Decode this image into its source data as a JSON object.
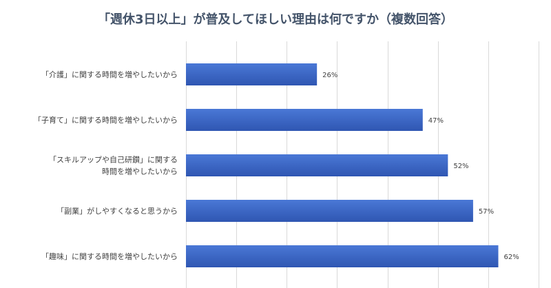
{
  "chart_data": {
    "type": "bar",
    "orientation": "horizontal",
    "title": "「週休3日以上」が普及してほしい理由は何ですか（複数回答）",
    "categories": [
      [
        "「介護」に関する時間を増やしたいから"
      ],
      [
        "「子育て」に関する時間を増やしたいから"
      ],
      [
        "「スキルアップや自己研鑚」に関する",
        "時間を増やしたいから"
      ],
      [
        "「副業」がしやすくなると思うから"
      ],
      [
        "「趣味」に関する時間を増やしたいから"
      ]
    ],
    "values": [
      26,
      47,
      52,
      57,
      62
    ],
    "value_labels": [
      "26%",
      "47%",
      "52%",
      "57%",
      "62%"
    ],
    "unit": "%",
    "xlim": [
      0,
      70
    ],
    "grid_step": 10,
    "grid": "vertical",
    "colors": {
      "bar_top": "#4a78d6",
      "bar_bottom": "#2f56b2",
      "grid": "#d9d9d9",
      "title": "#44546a"
    }
  }
}
